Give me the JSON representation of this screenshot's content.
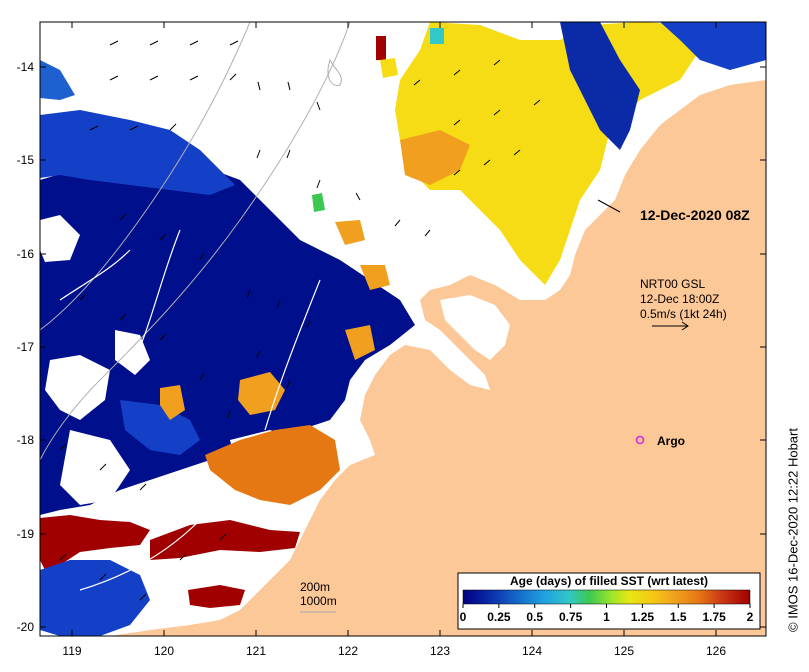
{
  "map": {
    "lon_ticks": [
      "119",
      "120",
      "121",
      "122",
      "123",
      "124",
      "125",
      "126"
    ],
    "lat_ticks": [
      "-14",
      "-15",
      "-16",
      "-17",
      "-18",
      "-19",
      "-20"
    ],
    "pass_label": "12-Dec-2020 08Z",
    "current_label": {
      "line1": "NRT00 GSL",
      "line2": "12-Dec 18:00Z",
      "line3": "0.5m/s (1kt 24h)"
    },
    "argo_label": "Argo",
    "bathy_labels": [
      "200m",
      "1000m"
    ],
    "colorbar": {
      "title": "Age (days) of filled SST (wrt latest)",
      "ticks": [
        "0",
        "0.25",
        "0.5",
        "0.75",
        "1",
        "1.25",
        "1.5",
        "1.75",
        "2"
      ],
      "colors": [
        "#000080",
        "#0a2aa8",
        "#1463c8",
        "#1ea0e0",
        "#32c8c8",
        "#3cc850",
        "#a0e628",
        "#e6e614",
        "#f5c814",
        "#f0a01e",
        "#e67814",
        "#c83214",
        "#a00000"
      ]
    },
    "credit": "© IMOS 16-Dec-2020 12:22 Hobart",
    "colors": {
      "land": "#fcc898",
      "ocean_nodata": "#ffffff",
      "argo_marker": "#e020e0",
      "deep_blue": "#000f8c"
    }
  }
}
